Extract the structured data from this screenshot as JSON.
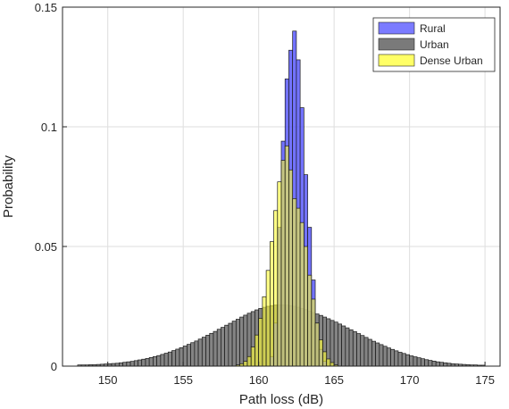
{
  "chart_data": {
    "type": "histogram",
    "title": "",
    "xlabel": "Path loss (dB)",
    "ylabel": "Probability",
    "xlim": [
      147,
      176
    ],
    "ylim": [
      0,
      0.15
    ],
    "bin_width": 0.25,
    "xticks": [
      150,
      155,
      160,
      165,
      170,
      175
    ],
    "xtick_labels": [
      "150",
      "155",
      "160",
      "165",
      "170",
      "175"
    ],
    "yticks": [
      0,
      0.05,
      0.1,
      0.15
    ],
    "ytick_labels": [
      "0",
      "0.05",
      "0.1",
      "0.15"
    ],
    "grid": true,
    "legend_position": "top-right",
    "series": [
      {
        "name": "Urban",
        "color": "#6f6f6f",
        "opacity": 0.85,
        "x_start": 148,
        "values": [
          0.0005,
          0.0005,
          0.0005,
          0.0006,
          0.0006,
          0.0007,
          0.0008,
          0.0009,
          0.001,
          0.0011,
          0.0012,
          0.0014,
          0.0016,
          0.0018,
          0.002,
          0.0023,
          0.0026,
          0.0029,
          0.0032,
          0.0036,
          0.004,
          0.0044,
          0.0049,
          0.0054,
          0.0059,
          0.0065,
          0.0071,
          0.0077,
          0.0084,
          0.0091,
          0.0098,
          0.0105,
          0.0113,
          0.0121,
          0.0129,
          0.0137,
          0.0145,
          0.0154,
          0.0162,
          0.0171,
          0.0179,
          0.0188,
          0.0196,
          0.0205,
          0.0213,
          0.0221,
          0.0228,
          0.0235,
          0.0241,
          0.0246,
          0.025,
          0.0253,
          0.0255,
          0.0256,
          0.0256,
          0.0255,
          0.0253,
          0.025,
          0.0246,
          0.0241,
          0.0236,
          0.023,
          0.0224,
          0.0218,
          0.0212,
          0.0205,
          0.0198,
          0.0191,
          0.0184,
          0.0176,
          0.0168,
          0.016,
          0.0152,
          0.0144,
          0.0136,
          0.0128,
          0.012,
          0.0112,
          0.0104,
          0.0097,
          0.009,
          0.0083,
          0.0076,
          0.007,
          0.0064,
          0.0058,
          0.0053,
          0.0048,
          0.0043,
          0.0039,
          0.0035,
          0.0031,
          0.0027,
          0.0024,
          0.0021,
          0.0018,
          0.0016,
          0.0014,
          0.0012,
          0.001,
          0.0009,
          0.0008,
          0.0007,
          0.0006,
          0.0005,
          0.0005,
          0.0004,
          0.0004
        ]
      },
      {
        "name": "Rural",
        "color": "#5a5aff",
        "opacity": 0.85,
        "x_start": 160.5,
        "values": [
          0.0,
          0.004,
          0.018,
          0.058,
          0.094,
          0.12,
          0.132,
          0.14,
          0.128,
          0.108,
          0.08,
          0.058,
          0.036,
          0.018,
          0.007,
          0.002
        ]
      },
      {
        "name": "Dense Urban",
        "color": "#ffff33",
        "opacity": 0.6,
        "x_start": 158.5,
        "values": [
          0.0005,
          0.001,
          0.002,
          0.004,
          0.008,
          0.013,
          0.02,
          0.029,
          0.04,
          0.052,
          0.065,
          0.077,
          0.086,
          0.092,
          0.082,
          0.07,
          0.066,
          0.06,
          0.05,
          0.038,
          0.028,
          0.018,
          0.011,
          0.006,
          0.003,
          0.0015,
          0.0005
        ]
      }
    ]
  }
}
